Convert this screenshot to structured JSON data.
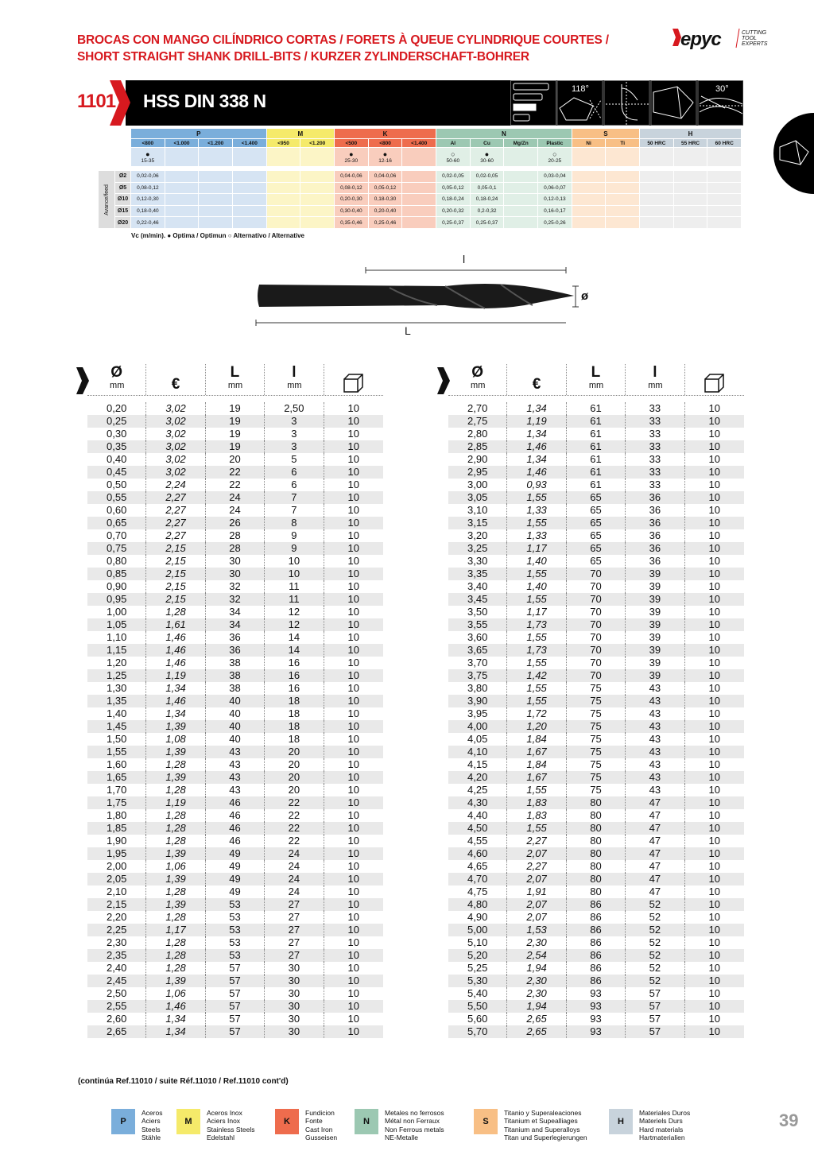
{
  "header": {
    "title_line1": "BROCAS CON MANGO CILÍNDRICO CORTAS / FORETS À QUEUE CYLINDRIQUE COURTES /",
    "title_line2": "SHORT STRAIGHT SHANK DRILL-BITS / KURZER ZYLINDERSCHAFT-BOHRER",
    "logo_text": "Hepyc",
    "logo_tagline": [
      "CUTTING",
      "TOOL",
      "EXPERTS"
    ]
  },
  "product": {
    "ref": "1101",
    "name": "HSS DIN 338 N",
    "angle1": "118°",
    "angle2": "30°",
    "icons": [
      "length-bars-icon",
      "point-angle-118-icon",
      "cross-section-icon",
      "drill-tip-icon",
      "helix-angle-30-icon"
    ]
  },
  "materials": {
    "groups": [
      {
        "code": "P",
        "color": "#7aaedb",
        "light": "#d6e4f3",
        "subs": [
          "<800",
          "<1.000",
          "<1.200",
          "<1.400"
        ]
      },
      {
        "code": "M",
        "color": "#f5ea6a",
        "light": "#fcf5c6",
        "subs": [
          "<950",
          "<1.200"
        ]
      },
      {
        "code": "K",
        "color": "#ee6c4d",
        "light": "#f9cdbd",
        "subs": [
          "<500",
          "<800",
          "<1.400"
        ]
      },
      {
        "code": "N",
        "color": "#9cc8b2",
        "light": "#e0efe6",
        "subs": [
          "Al",
          "Cu",
          "Mg/Zn",
          "Plastic"
        ]
      },
      {
        "code": "S",
        "color": "#f8bf85",
        "light": "#fde7d2",
        "subs": [
          "Ni",
          "Ti"
        ]
      },
      {
        "code": "H",
        "color": "#c8d3dc",
        "light": "#eeeeee",
        "subs": [
          "50 HRC",
          "55 HRC",
          "60 HRC"
        ]
      }
    ],
    "vc": [
      [
        "●",
        "15-35"
      ],
      [
        "",
        ""
      ],
      [
        "",
        ""
      ],
      [
        "",
        ""
      ],
      [
        "",
        ""
      ],
      [
        "",
        ""
      ],
      [
        "●",
        "25-30"
      ],
      [
        "●",
        "12-16"
      ],
      [
        "",
        ""
      ],
      [
        "○",
        "50-60"
      ],
      [
        "●",
        "30-60"
      ],
      [
        "",
        ""
      ],
      [
        "○",
        "20-25"
      ],
      [
        "",
        ""
      ],
      [
        "",
        ""
      ],
      [
        "",
        ""
      ],
      [
        "",
        ""
      ],
      [
        "",
        ""
      ]
    ],
    "feed_label": "Avance/feed",
    "feed_rows": [
      {
        "d": "Ø2",
        "v": [
          "0,02-0,06",
          "",
          "",
          "",
          "",
          "",
          "0,04-0,06",
          "0,04-0,06",
          "",
          "0,02-0,05",
          "0,02-0,05",
          "",
          "0,03-0,04",
          "",
          "",
          "",
          "",
          ""
        ]
      },
      {
        "d": "Ø5",
        "v": [
          "0,08-0,12",
          "",
          "",
          "",
          "",
          "",
          "0,08-0,12",
          "0,05-0,12",
          "",
          "0,05-0,12",
          "0,05-0,1",
          "",
          "0,06-0,07",
          "",
          "",
          "",
          "",
          ""
        ]
      },
      {
        "d": "Ø10",
        "v": [
          "0,12-0,30",
          "",
          "",
          "",
          "",
          "",
          "0,20-0,30",
          "0,18-0,30",
          "",
          "0,18-0,24",
          "0,18-0,24",
          "",
          "0,12-0,13",
          "",
          "",
          "",
          "",
          ""
        ]
      },
      {
        "d": "Ø15",
        "v": [
          "0,18-0,40",
          "",
          "",
          "",
          "",
          "",
          "0,30-0,40",
          "0,20-0,40",
          "",
          "0,20-0,32",
          "0,2-0,32",
          "",
          "0,16-0,17",
          "",
          "",
          "",
          "",
          ""
        ]
      },
      {
        "d": "Ø20",
        "v": [
          "0,22-0,46",
          "",
          "",
          "",
          "",
          "",
          "0,35-0,46",
          "0,25-0,46",
          "",
          "0,25-0,37",
          "0,25-0,37",
          "",
          "0,25-0,26",
          "",
          "",
          "",
          "",
          ""
        ]
      }
    ],
    "vc_legend": "Vc (m/min). ● Optima / Optimun  ○ Alternativo / Alternative"
  },
  "drawing": {
    "l_label": "l",
    "L_label": "L",
    "d_label": "ø"
  },
  "table": {
    "headers": [
      {
        "sym": "Ø",
        "unit": "mm"
      },
      {
        "sym": "€",
        "unit": ""
      },
      {
        "sym": "L",
        "unit": "mm"
      },
      {
        "sym": "l",
        "unit": "mm"
      },
      {
        "sym": "box-icon",
        "unit": ""
      }
    ],
    "left": [
      [
        "0,20",
        "3,02",
        "19",
        "2,50",
        "10"
      ],
      [
        "0,25",
        "3,02",
        "19",
        "3",
        "10"
      ],
      [
        "0,30",
        "3,02",
        "19",
        "3",
        "10"
      ],
      [
        "0,35",
        "3,02",
        "19",
        "3",
        "10"
      ],
      [
        "0,40",
        "3,02",
        "20",
        "5",
        "10"
      ],
      [
        "0,45",
        "3,02",
        "22",
        "6",
        "10"
      ],
      [
        "0,50",
        "2,24",
        "22",
        "6",
        "10"
      ],
      [
        "0,55",
        "2,27",
        "24",
        "7",
        "10"
      ],
      [
        "0,60",
        "2,27",
        "24",
        "7",
        "10"
      ],
      [
        "0,65",
        "2,27",
        "26",
        "8",
        "10"
      ],
      [
        "0,70",
        "2,27",
        "28",
        "9",
        "10"
      ],
      [
        "0,75",
        "2,15",
        "28",
        "9",
        "10"
      ],
      [
        "0,80",
        "2,15",
        "30",
        "10",
        "10"
      ],
      [
        "0,85",
        "2,15",
        "30",
        "10",
        "10"
      ],
      [
        "0,90",
        "2,15",
        "32",
        "11",
        "10"
      ],
      [
        "0,95",
        "2,15",
        "32",
        "11",
        "10"
      ],
      [
        "1,00",
        "1,28",
        "34",
        "12",
        "10"
      ],
      [
        "1,05",
        "1,61",
        "34",
        "12",
        "10"
      ],
      [
        "1,10",
        "1,46",
        "36",
        "14",
        "10"
      ],
      [
        "1,15",
        "1,46",
        "36",
        "14",
        "10"
      ],
      [
        "1,20",
        "1,46",
        "38",
        "16",
        "10"
      ],
      [
        "1,25",
        "1,19",
        "38",
        "16",
        "10"
      ],
      [
        "1,30",
        "1,34",
        "38",
        "16",
        "10"
      ],
      [
        "1,35",
        "1,46",
        "40",
        "18",
        "10"
      ],
      [
        "1,40",
        "1,34",
        "40",
        "18",
        "10"
      ],
      [
        "1,45",
        "1,39",
        "40",
        "18",
        "10"
      ],
      [
        "1,50",
        "1,08",
        "40",
        "18",
        "10"
      ],
      [
        "1,55",
        "1,39",
        "43",
        "20",
        "10"
      ],
      [
        "1,60",
        "1,28",
        "43",
        "20",
        "10"
      ],
      [
        "1,65",
        "1,39",
        "43",
        "20",
        "10"
      ],
      [
        "1,70",
        "1,28",
        "43",
        "20",
        "10"
      ],
      [
        "1,75",
        "1,19",
        "46",
        "22",
        "10"
      ],
      [
        "1,80",
        "1,28",
        "46",
        "22",
        "10"
      ],
      [
        "1,85",
        "1,28",
        "46",
        "22",
        "10"
      ],
      [
        "1,90",
        "1,28",
        "46",
        "22",
        "10"
      ],
      [
        "1,95",
        "1,39",
        "49",
        "24",
        "10"
      ],
      [
        "2,00",
        "1,06",
        "49",
        "24",
        "10"
      ],
      [
        "2,05",
        "1,39",
        "49",
        "24",
        "10"
      ],
      [
        "2,10",
        "1,28",
        "49",
        "24",
        "10"
      ],
      [
        "2,15",
        "1,39",
        "53",
        "27",
        "10"
      ],
      [
        "2,20",
        "1,28",
        "53",
        "27",
        "10"
      ],
      [
        "2,25",
        "1,17",
        "53",
        "27",
        "10"
      ],
      [
        "2,30",
        "1,28",
        "53",
        "27",
        "10"
      ],
      [
        "2,35",
        "1,28",
        "53",
        "27",
        "10"
      ],
      [
        "2,40",
        "1,28",
        "57",
        "30",
        "10"
      ],
      [
        "2,45",
        "1,39",
        "57",
        "30",
        "10"
      ],
      [
        "2,50",
        "1,06",
        "57",
        "30",
        "10"
      ],
      [
        "2,55",
        "1,46",
        "57",
        "30",
        "10"
      ],
      [
        "2,60",
        "1,34",
        "57",
        "30",
        "10"
      ],
      [
        "2,65",
        "1,34",
        "57",
        "30",
        "10"
      ]
    ],
    "right": [
      [
        "2,70",
        "1,34",
        "61",
        "33",
        "10"
      ],
      [
        "2,75",
        "1,19",
        "61",
        "33",
        "10"
      ],
      [
        "2,80",
        "1,34",
        "61",
        "33",
        "10"
      ],
      [
        "2,85",
        "1,46",
        "61",
        "33",
        "10"
      ],
      [
        "2,90",
        "1,34",
        "61",
        "33",
        "10"
      ],
      [
        "2,95",
        "1,46",
        "61",
        "33",
        "10"
      ],
      [
        "3,00",
        "0,93",
        "61",
        "33",
        "10"
      ],
      [
        "3,05",
        "1,55",
        "65",
        "36",
        "10"
      ],
      [
        "3,10",
        "1,33",
        "65",
        "36",
        "10"
      ],
      [
        "3,15",
        "1,55",
        "65",
        "36",
        "10"
      ],
      [
        "3,20",
        "1,33",
        "65",
        "36",
        "10"
      ],
      [
        "3,25",
        "1,17",
        "65",
        "36",
        "10"
      ],
      [
        "3,30",
        "1,40",
        "65",
        "36",
        "10"
      ],
      [
        "3,35",
        "1,55",
        "70",
        "39",
        "10"
      ],
      [
        "3,40",
        "1,40",
        "70",
        "39",
        "10"
      ],
      [
        "3,45",
        "1,55",
        "70",
        "39",
        "10"
      ],
      [
        "3,50",
        "1,17",
        "70",
        "39",
        "10"
      ],
      [
        "3,55",
        "1,73",
        "70",
        "39",
        "10"
      ],
      [
        "3,60",
        "1,55",
        "70",
        "39",
        "10"
      ],
      [
        "3,65",
        "1,73",
        "70",
        "39",
        "10"
      ],
      [
        "3,70",
        "1,55",
        "70",
        "39",
        "10"
      ],
      [
        "3,75",
        "1,42",
        "70",
        "39",
        "10"
      ],
      [
        "3,80",
        "1,55",
        "75",
        "43",
        "10"
      ],
      [
        "3,90",
        "1,55",
        "75",
        "43",
        "10"
      ],
      [
        "3,95",
        "1,72",
        "75",
        "43",
        "10"
      ],
      [
        "4,00",
        "1,20",
        "75",
        "43",
        "10"
      ],
      [
        "4,05",
        "1,84",
        "75",
        "43",
        "10"
      ],
      [
        "4,10",
        "1,67",
        "75",
        "43",
        "10"
      ],
      [
        "4,15",
        "1,84",
        "75",
        "43",
        "10"
      ],
      [
        "4,20",
        "1,67",
        "75",
        "43",
        "10"
      ],
      [
        "4,25",
        "1,55",
        "75",
        "43",
        "10"
      ],
      [
        "4,30",
        "1,83",
        "80",
        "47",
        "10"
      ],
      [
        "4,40",
        "1,83",
        "80",
        "47",
        "10"
      ],
      [
        "4,50",
        "1,55",
        "80",
        "47",
        "10"
      ],
      [
        "4,55",
        "2,27",
        "80",
        "47",
        "10"
      ],
      [
        "4,60",
        "2,07",
        "80",
        "47",
        "10"
      ],
      [
        "4,65",
        "2,27",
        "80",
        "47",
        "10"
      ],
      [
        "4,70",
        "2,07",
        "80",
        "47",
        "10"
      ],
      [
        "4,75",
        "1,91",
        "80",
        "47",
        "10"
      ],
      [
        "4,80",
        "2,07",
        "86",
        "52",
        "10"
      ],
      [
        "4,90",
        "2,07",
        "86",
        "52",
        "10"
      ],
      [
        "5,00",
        "1,53",
        "86",
        "52",
        "10"
      ],
      [
        "5,10",
        "2,30",
        "86",
        "52",
        "10"
      ],
      [
        "5,20",
        "2,54",
        "86",
        "52",
        "10"
      ],
      [
        "5,25",
        "1,94",
        "86",
        "52",
        "10"
      ],
      [
        "5,30",
        "2,30",
        "86",
        "52",
        "10"
      ],
      [
        "5,40",
        "2,30",
        "93",
        "57",
        "10"
      ],
      [
        "5,50",
        "1,94",
        "93",
        "57",
        "10"
      ],
      [
        "5,60",
        "2,65",
        "93",
        "57",
        "10"
      ],
      [
        "5,70",
        "2,65",
        "93",
        "57",
        "10"
      ]
    ]
  },
  "footer": {
    "continued": "(continúa Ref.11010 / suite Réf.11010 / Ref.11010 cont'd)",
    "page": "39",
    "legend": [
      {
        "code": "P",
        "color": "#7aaedb",
        "lines": [
          "Aceros",
          "Aciers",
          "Steels",
          "Stähle"
        ]
      },
      {
        "code": "M",
        "color": "#f5ea6a",
        "lines": [
          "Aceros Inox",
          "Aciers Inox",
          "Stainless Steels",
          "Edelstahl"
        ]
      },
      {
        "code": "K",
        "color": "#ee6c4d",
        "lines": [
          "Fundicion",
          "Fonte",
          "Cast Iron",
          "Gusseisen"
        ]
      },
      {
        "code": "N",
        "color": "#9cc8b2",
        "lines": [
          "Metales no ferrosos",
          "Métal non Ferraux",
          "Non Ferrous metals",
          "NE-Metalle"
        ]
      },
      {
        "code": "S",
        "color": "#f8bf85",
        "lines": [
          "Titanio y Superaleaciones",
          "Titanium et Supealliages",
          "Titanium and Superalloys",
          "Titan und Superlegierungen"
        ]
      },
      {
        "code": "H",
        "color": "#c8d3dc",
        "lines": [
          "Materiales Duros",
          "Materiels Durs",
          "Hard materials",
          "Hartmaterialien"
        ]
      }
    ]
  }
}
